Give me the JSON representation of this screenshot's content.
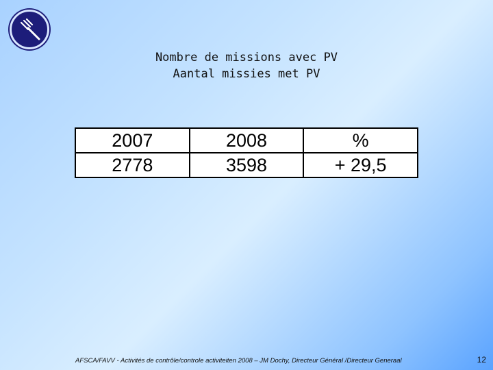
{
  "logo": {
    "icon": "fork-emblem-icon",
    "colors": {
      "fill": "#1d1d7a",
      "ring": "#d8e6ff"
    }
  },
  "title": {
    "line1": "Nombre de missions avec PV",
    "line2": "Aantal missies met PV"
  },
  "table": {
    "header": [
      "2007",
      "2008",
      "%"
    ],
    "row": [
      "2778",
      "3598",
      "+ 29,5"
    ]
  },
  "footer": {
    "text": "AFSCA/FAVV - Activités de contrôle/controle activiteiten 2008 – JM Dochy, Directeur Général /Directeur Generaal",
    "page_number": "12"
  }
}
